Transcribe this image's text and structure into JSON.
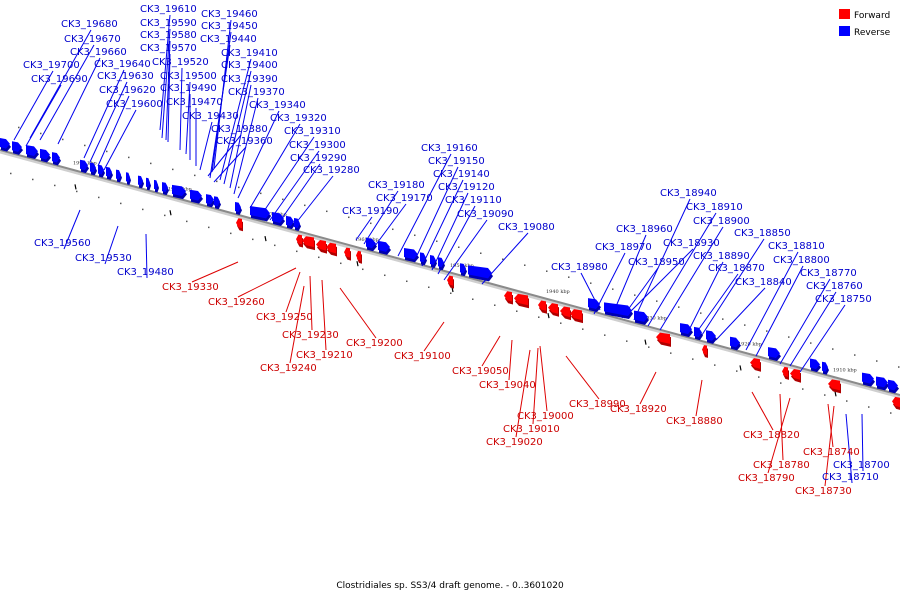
{
  "legend": {
    "forward": "Forward",
    "reverse": "Reverse",
    "forward_color": "#ff0000",
    "reverse_color": "#0000ff"
  },
  "caption": "Clostridiales sp. SS3/4 draft genome. - 0..3601020",
  "axis": {
    "ticks": [
      "1990 kbp",
      "1980 kbp",
      "1970 kbp",
      "1960 kbp",
      "1950 kbp",
      "1940 kbp",
      "1930 kbp",
      "1920 kbp",
      "1910 kbp"
    ]
  },
  "genes_reverse": [
    "CK3_19610",
    "CK3_19460",
    "CK3_19680",
    "CK3_19590",
    "CK3_19450",
    "CK3_19670",
    "CK3_19580",
    "CK3_19440",
    "CK3_19660",
    "CK3_19570",
    "CK3_19410",
    "CK3_19640",
    "CK3_19520",
    "CK3_19400",
    "CK3_19700",
    "CK3_19630",
    "CK3_19500",
    "CK3_19390",
    "CK3_19690",
    "CK3_19620",
    "CK3_19490",
    "CK3_19370",
    "CK3_19600",
    "CK3_19470",
    "CK3_19340",
    "CK3_19430",
    "CK3_19320",
    "CK3_19380",
    "CK3_19310",
    "CK3_19360",
    "CK3_19300",
    "CK3_19290",
    "CK3_19280",
    "CK3_19160",
    "CK3_19150",
    "CK3_19140",
    "CK3_19180",
    "CK3_19120",
    "CK3_19170",
    "CK3_19110",
    "CK3_19190",
    "CK3_19090",
    "CK3_19080",
    "CK3_19560",
    "CK3_19530",
    "CK3_19480",
    "CK3_18940",
    "CK3_18910",
    "CK3_18900",
    "CK3_18960",
    "CK3_18850",
    "CK3_18930",
    "CK3_18970",
    "CK3_18810",
    "CK3_18890",
    "CK3_18800",
    "CK3_18950",
    "CK3_18980",
    "CK3_18870",
    "CK3_18770",
    "CK3_18840",
    "CK3_18760",
    "CK3_18750",
    "CK3_18700",
    "CK3_18710"
  ],
  "genes_forward": [
    "CK3_19330",
    "CK3_19260",
    "CK3_19250",
    "CK3_19230",
    "CK3_19200",
    "CK3_19210",
    "CK3_19100",
    "CK3_19240",
    "CK3_19050",
    "CK3_19040",
    "CK3_18990",
    "CK3_18920",
    "CK3_19000",
    "CK3_18880",
    "CK3_19010",
    "CK3_18820",
    "CK3_19020",
    "CK3_18740",
    "CK3_18780",
    "CK3_18790",
    "CK3_18730"
  ]
}
